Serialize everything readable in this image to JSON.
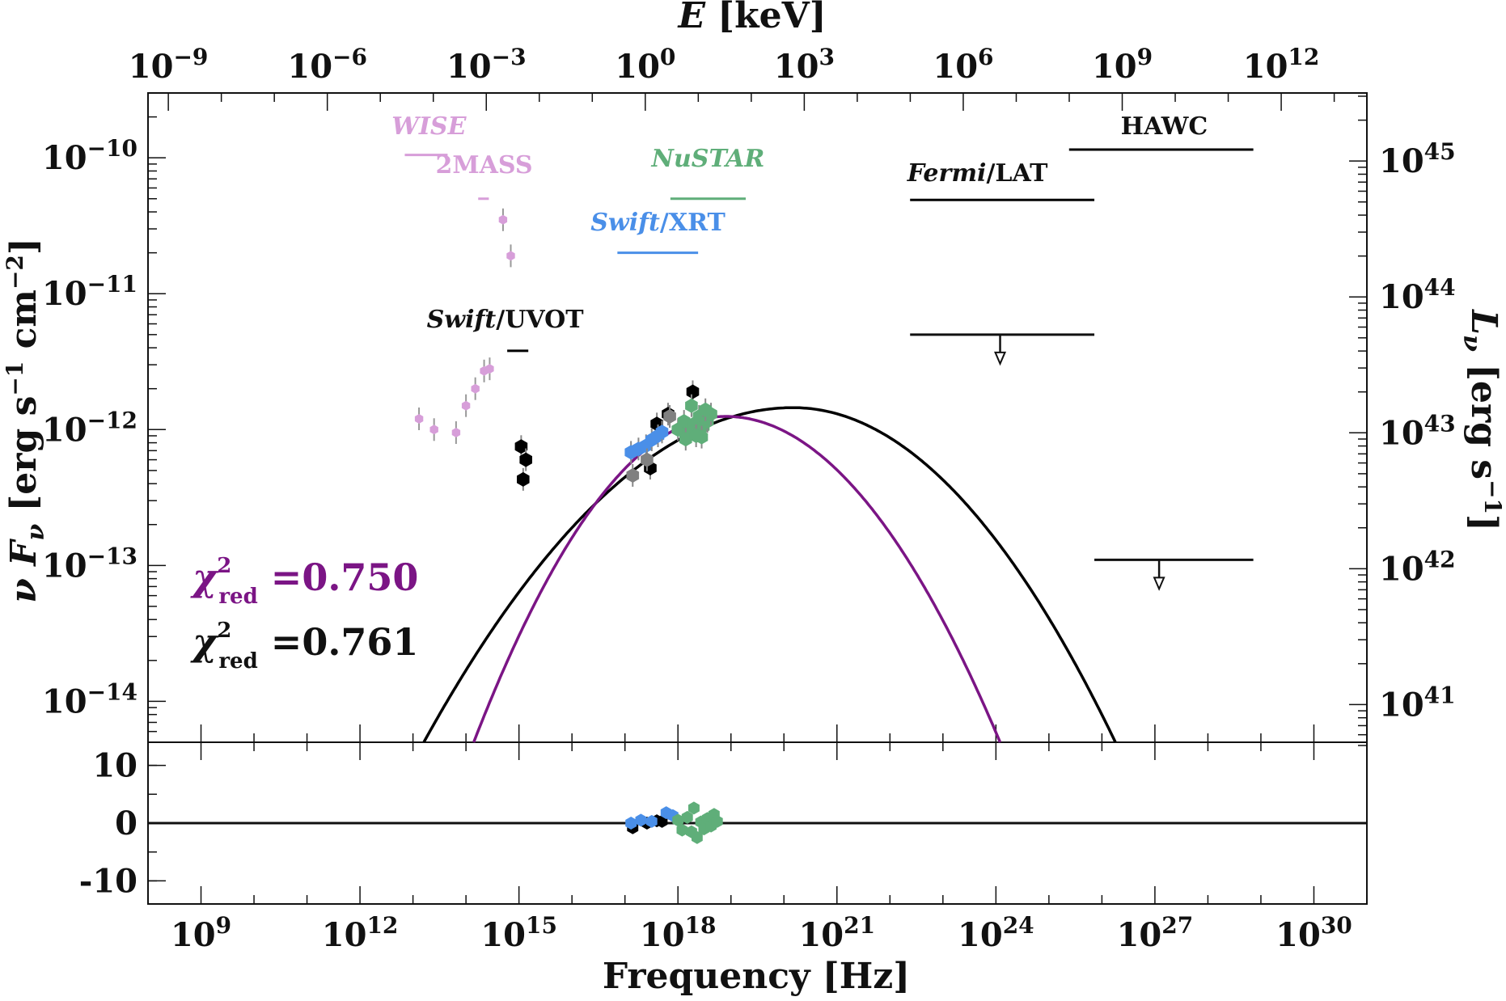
{
  "chart_data": [
    {
      "type": "scatter",
      "panel": "sed",
      "x_axis": {
        "label": "Frequency [Hz]",
        "scale": "log",
        "range": [
          100000000.0,
          1e+31
        ],
        "tick_labels": [
          "10^9",
          "10^12",
          "10^15",
          "10^18",
          "10^21",
          "10^24",
          "10^27",
          "10^30"
        ]
      },
      "x2_axis": {
        "label": "E [keV]",
        "scale": "log",
        "tick_labels": [
          "10^-9",
          "10^-6",
          "10^-3",
          "10^0",
          "10^3",
          "10^6",
          "10^9",
          "10^12"
        ]
      },
      "y_axis": {
        "label": "ν F_ν [erg s^-1 cm^-2]",
        "scale": "log",
        "range": [
          5e-15,
          3e-10
        ],
        "tick_labels": [
          "10^-10",
          "10^-11",
          "10^-12",
          "10^-13",
          "10^-14"
        ]
      },
      "y2_axis": {
        "label": "L_ν [erg s^-1]",
        "scale": "log",
        "tick_labels": [
          "10^45",
          "10^44",
          "10^43",
          "10^42",
          "10^41"
        ]
      },
      "series": [
        {
          "name": "WISE",
          "color": "#d79ed9",
          "points": [
            [
              13000000000000.0,
              1.2e-12
            ],
            [
              25000000000000.0,
              1e-12
            ],
            [
              65000000000000.0,
              9.5e-13
            ],
            [
              100000000000000.0,
              1.5e-12
            ],
            [
              150000000000000.0,
              2e-12
            ],
            [
              220000000000000.0,
              2.7e-12
            ],
            [
              280000000000000.0,
              2.8e-12
            ],
            [
              500000000000000.0,
              3.5e-11
            ],
            [
              700000000000000.0,
              1.9e-11
            ]
          ]
        },
        {
          "name": "Swift/UVOT",
          "color": "#000000",
          "points": [
            [
              1100000000000000.0,
              7.5e-13
            ],
            [
              1350000000000000.0,
              6e-13
            ],
            [
              1200000000000000.0,
              4.3e-13
            ],
            [
              4e+17,
              1.1e-12
            ],
            [
              6.5e+17,
              1.3e-12
            ],
            [
              1.9e+18,
              1.9e-12
            ],
            [
              3e+17,
              5.2e-13
            ]
          ]
        },
        {
          "name": "Swift/XRT",
          "color": "#4a8fe8",
          "points": [
            [
              1.3e+17,
              6.8e-13
            ],
            [
              1.8e+17,
              7.2e-13
            ],
            [
              2.5e+17,
              7.6e-13
            ],
            [
              3.2e+17,
              8.4e-13
            ],
            [
              4.2e+17,
              9e-13
            ],
            [
              5e+17,
              9.6e-13
            ]
          ]
        },
        {
          "name": "NuSTAR",
          "color": "#5fae79",
          "points": [
            [
              1e+18,
              1e-12
            ],
            [
              1.3e+18,
              1.15e-12
            ],
            [
              1.6e+18,
              9.5e-13
            ],
            [
              2e+18,
              1.1e-12
            ],
            [
              2.5e+18,
              1.25e-12
            ],
            [
              3e+18,
              1.05e-12
            ],
            [
              3.6e+18,
              1.15e-12
            ],
            [
              4.2e+18,
              1.3e-12
            ],
            [
              1.8e+18,
              1.5e-12
            ],
            [
              2.8e+18,
              8.8e-13
            ],
            [
              1.4e+18,
              8.5e-13
            ],
            [
              3.3e+18,
              1.4e-12
            ],
            [
              2.2e+18,
              9e-13
            ]
          ]
        },
        {
          "name": "",
          "color": "#808080",
          "points": [
            [
              1.4e+17,
              4.6e-13
            ],
            [
              2.6e+17,
              6e-13
            ],
            [
              7e+17,
              1.25e-12
            ]
          ]
        }
      ],
      "bands": [
        {
          "name": "WISE",
          "color": "#d79ed9",
          "x": [
            7000000000000.0,
            45000000000000.0
          ],
          "y": 1.05e-10
        },
        {
          "name": "2MASS",
          "color": "#d79ed9",
          "x": [
            170000000000000.0,
            270000000000000.0
          ],
          "y": 5e-11
        },
        {
          "name": "Swift/UVOT",
          "color": "#000000",
          "x": [
            600000000000000.0,
            1500000000000000.0
          ],
          "y": 3.8e-12
        },
        {
          "name": "Swift/XRT",
          "color": "#4a8fe8",
          "x": [
            7.2e+16,
            2.4e+18
          ],
          "y": 2e-11
        },
        {
          "name": "NuSTAR",
          "color": "#5fae79",
          "x": [
            7.2e+17,
            1.9e+19
          ],
          "y": 5e-11
        },
        {
          "name": "Fermi/LAT",
          "color": "#000000",
          "x": [
            2.4e+22,
            7.2e+25
          ],
          "y": 4.9e-11
        },
        {
          "name": "HAWC",
          "color": "#000000",
          "x": [
            2.4e+25,
            7.2e+28
          ],
          "y": 1.15e-10
        }
      ],
      "upper_limits": [
        {
          "x": [
            2.4e+22,
            7.2e+25
          ],
          "y": 5e-12,
          "arrow_x": 1.2e+24
        },
        {
          "x": [
            7.2e+25,
            7.2e+28
          ],
          "y": 1.1e-13,
          "arrow_x": 1.2e+27
        }
      ],
      "models": [
        {
          "color": "#000000",
          "peak_x": 1.5e+20,
          "peak_y": 1.45e-12,
          "left_x_at_bottom": 16000000000000.0,
          "right_x_at_bottom": 1.8e+26
        },
        {
          "color": "#7b1585",
          "peak_x": 8e+18,
          "peak_y": 1.25e-12,
          "left_x_at_bottom": 140000000000000.0,
          "right_x_at_bottom": 1.2e+24
        }
      ],
      "labels": {
        "wise": {
          "italic": "WISE",
          "rest": ""
        },
        "twomass": {
          "italic": "",
          "rest": "2MASS"
        },
        "nustar": {
          "italic": "NuSTAR",
          "rest": ""
        },
        "xrt": {
          "italic": "Swift",
          "rest": "/XRT"
        },
        "uvot": {
          "italic": "Swift",
          "rest": "/UVOT"
        },
        "fermi": {
          "italic": "Fermi",
          "rest": "/LAT"
        },
        "hawc": {
          "italic": "",
          "rest": "HAWC"
        }
      },
      "fit_stats": [
        {
          "symbol": "χ",
          "sup": "2",
          "sub": "red",
          "value": "=0.750",
          "color": "#7b1585"
        },
        {
          "symbol": "χ",
          "sup": "2",
          "sub": "red",
          "value": "=0.761",
          "color": "#111111"
        }
      ]
    },
    {
      "type": "scatter",
      "panel": "residuals",
      "y_axis": {
        "range": [
          -14,
          14
        ],
        "tick_labels": [
          "10",
          "0",
          "-10"
        ]
      },
      "series": [
        {
          "name": "Swift/UVOT",
          "color": "#000000",
          "points": [
            [
              1.4e+17,
              -0.8
            ],
            [
              2.6e+17,
              0.0
            ],
            [
              4e+17,
              0.4
            ],
            [
              5e+17,
              0.3
            ]
          ]
        },
        {
          "name": "Swift/XRT",
          "color": "#4a8fe8",
          "points": [
            [
              1.3e+17,
              0.0
            ],
            [
              2e+17,
              0.5
            ],
            [
              3.2e+17,
              0.3
            ],
            [
              6e+17,
              1.8
            ],
            [
              8e+17,
              1.3
            ]
          ]
        },
        {
          "name": "NuSTAR",
          "color": "#5fae79",
          "points": [
            [
              1e+18,
              0.5
            ],
            [
              1.2e+18,
              -1.2
            ],
            [
              1.5e+18,
              1.0
            ],
            [
              1.8e+18,
              -1.5
            ],
            [
              2e+18,
              2.6
            ],
            [
              2.3e+18,
              -2.5
            ],
            [
              2.7e+18,
              0.2
            ],
            [
              3.1e+18,
              -1.0
            ],
            [
              3.6e+18,
              0.8
            ],
            [
              4.2e+18,
              -0.5
            ],
            [
              4.8e+18,
              1.5
            ],
            [
              5.5e+18,
              0.3
            ]
          ]
        }
      ]
    }
  ],
  "axes_text": {
    "top_title_var": "E",
    "top_title_unit": " [keV]",
    "bottom_title": "Frequency [Hz]",
    "left_title_var": "ν F",
    "left_title_sub": "ν",
    "left_title_unit": " [erg s",
    "left_title_unit_sup1": "−1",
    "left_title_unit_mid": " cm",
    "left_title_unit_sup2": "−2",
    "left_title_unit_end": "]",
    "right_title_var": "L",
    "right_title_sub": "ν",
    "right_title_unit": " [erg s",
    "right_title_unit_sup": "−1",
    "right_title_unit_end": "]"
  }
}
